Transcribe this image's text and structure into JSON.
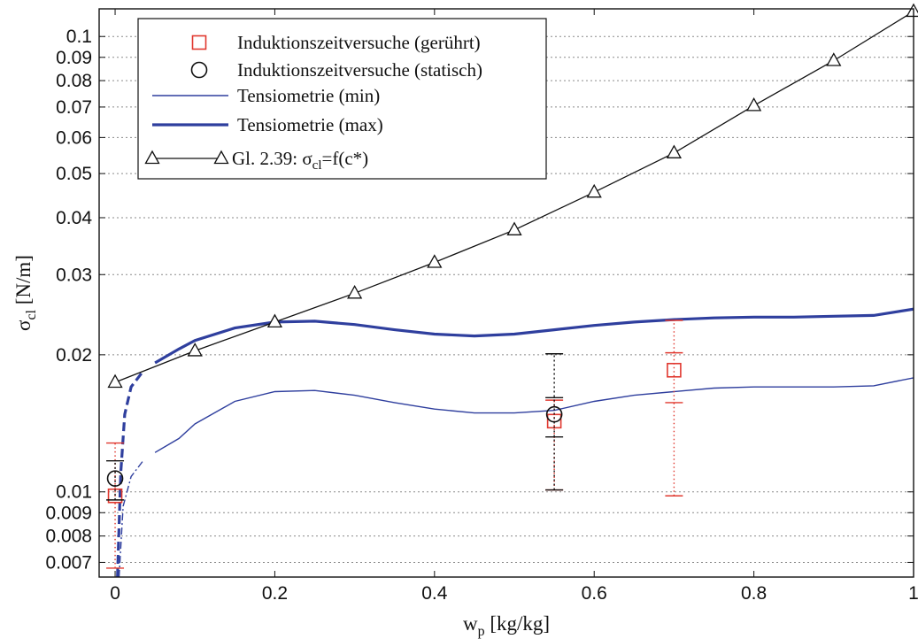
{
  "chart_data": {
    "type": "line",
    "xlabel": {
      "main": "w",
      "sub": "p",
      "rest": " [kg/kg]"
    },
    "ylabel": {
      "main": "σ",
      "sub": "cl",
      "rest": " [N/m]"
    },
    "x_scale": "linear",
    "y_scale": "log",
    "xlim": [
      -0.02,
      1.0
    ],
    "ylim": [
      0.0065,
      0.115
    ],
    "x_ticks": [
      0,
      0.2,
      0.4,
      0.6,
      0.8,
      1
    ],
    "x_tick_labels": [
      "0",
      "0.2",
      "0.4",
      "0.6",
      "0.8",
      "1"
    ],
    "y_ticks": [
      0.007,
      0.008,
      0.009,
      0.01,
      0.02,
      0.03,
      0.04,
      0.05,
      0.06,
      0.07,
      0.08,
      0.09,
      0.1
    ],
    "y_tick_labels": [
      "0.007",
      "0.008",
      "0.009",
      "0.01",
      "0.02",
      "0.03",
      "0.04",
      "0.05",
      "0.06",
      "0.07",
      "0.08",
      "0.09",
      "0.1"
    ],
    "grid": {
      "horizontal": true,
      "vertical": false
    },
    "legend_position": "top-left",
    "legend": [
      {
        "label": "Induktionszeitversuche (gerührt)",
        "marker": "square",
        "color": "#e0382f"
      },
      {
        "label": "Induktionszeitversuche (statisch)",
        "marker": "circle",
        "color": "#111111"
      },
      {
        "label": "Tensiometrie (min)",
        "line": "thin",
        "color": "#2f3f9e"
      },
      {
        "label": "Tensiometrie (max)",
        "line": "thick",
        "color": "#2f3f9e"
      },
      {
        "label_main": "Gl. 2.39: σ",
        "label_sub": "cl",
        "label_rest": "=f(c*)",
        "marker": "triangle",
        "color": "#111111"
      }
    ],
    "series": [
      {
        "name": "Induktionszeitversuche (gerührt)",
        "kind": "errorbar",
        "color": "#e0382f",
        "points": [
          {
            "x": 0.0,
            "y": 0.0098,
            "ylow": 0.0068,
            "yhigh": 0.0128
          },
          {
            "x": 0.55,
            "y": 0.0143,
            "ylow": 0.0101,
            "yhigh": 0.0159
          },
          {
            "x": 0.7,
            "y": 0.0185,
            "ylow": 0.0098,
            "yhigh": 0.0238,
            "inner_low": 0.0157,
            "inner_high": 0.0202
          }
        ]
      },
      {
        "name": "Induktionszeitversuche (statisch)",
        "kind": "errorbar",
        "color": "#111111",
        "points": [
          {
            "x": 0.0,
            "y": 0.0107,
            "ylow": 0.0096,
            "yhigh": 0.0117
          },
          {
            "x": 0.55,
            "y": 0.0148,
            "ylow": 0.0101,
            "yhigh": 0.0201,
            "inner_low": 0.0132,
            "inner_high": 0.0161
          }
        ]
      },
      {
        "name": "Tensiometrie (min)",
        "kind": "line",
        "color": "#2f3f9e",
        "dashed_x": [
          0.005,
          0.045
        ],
        "points": [
          [
            0.005,
            0.0065
          ],
          [
            0.01,
            0.0093
          ],
          [
            0.02,
            0.0108
          ],
          [
            0.035,
            0.0117
          ],
          [
            0.05,
            0.0122
          ],
          [
            0.08,
            0.0131
          ],
          [
            0.1,
            0.0141
          ],
          [
            0.15,
            0.0158
          ],
          [
            0.2,
            0.0166
          ],
          [
            0.25,
            0.0167
          ],
          [
            0.3,
            0.0163
          ],
          [
            0.35,
            0.0157
          ],
          [
            0.4,
            0.0152
          ],
          [
            0.45,
            0.0149
          ],
          [
            0.5,
            0.0149
          ],
          [
            0.55,
            0.0151
          ],
          [
            0.6,
            0.0158
          ],
          [
            0.65,
            0.0163
          ],
          [
            0.7,
            0.0166
          ],
          [
            0.75,
            0.0169
          ],
          [
            0.8,
            0.017
          ],
          [
            0.85,
            0.017
          ],
          [
            0.9,
            0.017
          ],
          [
            0.95,
            0.0171
          ],
          [
            1.0,
            0.0178
          ]
        ]
      },
      {
        "name": "Tensiometrie (max)",
        "kind": "line",
        "color": "#2f3f9e",
        "dashed_x": [
          0.003,
          0.045
        ],
        "points": [
          [
            0.003,
            0.0065
          ],
          [
            0.007,
            0.011
          ],
          [
            0.012,
            0.0148
          ],
          [
            0.02,
            0.017
          ],
          [
            0.035,
            0.0184
          ],
          [
            0.05,
            0.0192
          ],
          [
            0.08,
            0.0206
          ],
          [
            0.1,
            0.0215
          ],
          [
            0.15,
            0.0229
          ],
          [
            0.2,
            0.0236
          ],
          [
            0.25,
            0.0237
          ],
          [
            0.3,
            0.0233
          ],
          [
            0.35,
            0.0227
          ],
          [
            0.4,
            0.0222
          ],
          [
            0.45,
            0.022
          ],
          [
            0.5,
            0.0222
          ],
          [
            0.55,
            0.0227
          ],
          [
            0.6,
            0.0232
          ],
          [
            0.65,
            0.0236
          ],
          [
            0.7,
            0.0239
          ],
          [
            0.75,
            0.0241
          ],
          [
            0.8,
            0.0242
          ],
          [
            0.85,
            0.0242
          ],
          [
            0.9,
            0.0243
          ],
          [
            0.95,
            0.0244
          ],
          [
            1.0,
            0.0252
          ]
        ]
      },
      {
        "name": "Gl. 2.39",
        "kind": "line-marker",
        "color": "#111111",
        "points": [
          [
            0.0,
            0.0174
          ],
          [
            0.1,
            0.0204
          ],
          [
            0.2,
            0.0236
          ],
          [
            0.3,
            0.0273
          ],
          [
            0.4,
            0.0319
          ],
          [
            0.5,
            0.0376
          ],
          [
            0.6,
            0.0455
          ],
          [
            0.7,
            0.0555
          ],
          [
            0.8,
            0.0705
          ],
          [
            0.9,
            0.0885
          ],
          [
            1.0,
            0.1135
          ]
        ]
      }
    ]
  }
}
